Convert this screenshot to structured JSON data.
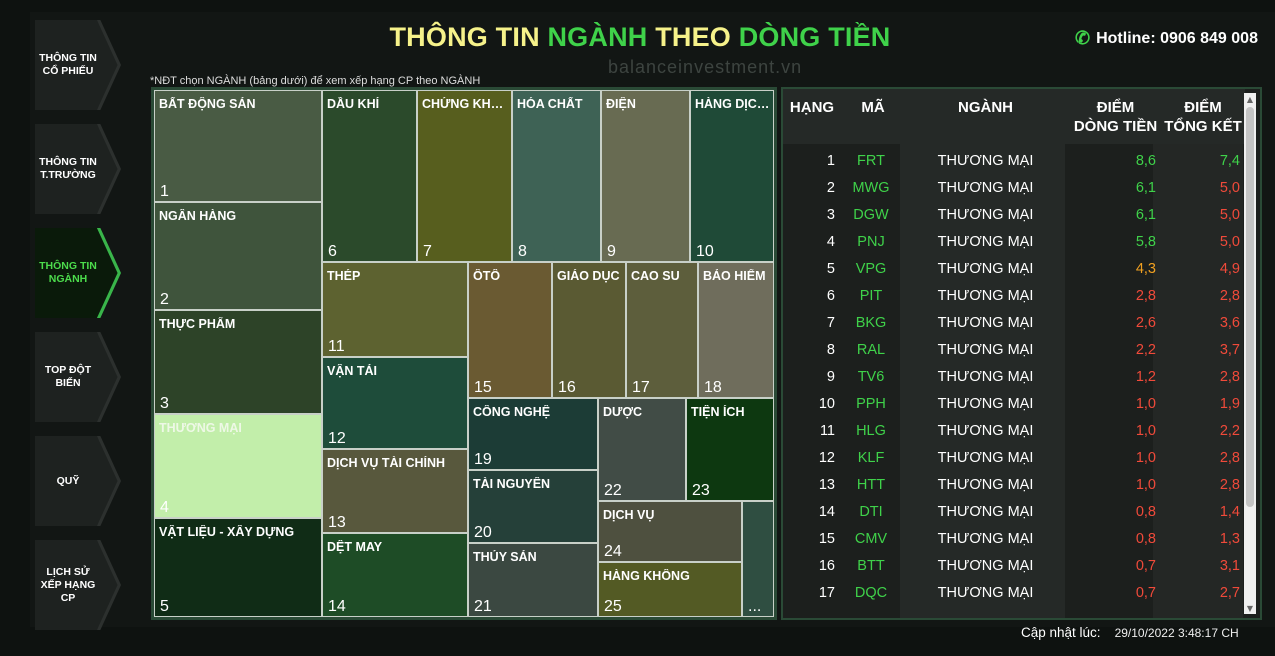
{
  "header": {
    "title_parts": [
      {
        "text": "THÔNG TIN ",
        "color": "#f6f28a"
      },
      {
        "text": "NGÀNH ",
        "color": "#3fd24a"
      },
      {
        "text": "THEO ",
        "color": "#f6f28a"
      },
      {
        "text": "DÒNG TIỀN",
        "color": "#3fd24a"
      }
    ],
    "hotline": "Hotline: 0906 849 008",
    "watermark": "balanceinvestment.vn",
    "note": "*NĐT chọn NGÀNH (bảng dưới) để xem xếp hạng CP theo NGÀNH"
  },
  "sidebar": {
    "items": [
      {
        "label": "THÔNG TIN CỔ PHIẾU",
        "active": false
      },
      {
        "label": "THÔNG TIN T.TRƯỜNG",
        "active": false
      },
      {
        "label": "THÔNG TIN NGÀNH",
        "active": true
      },
      {
        "label": "TOP ĐỘT BIẾN",
        "active": false
      },
      {
        "label": "QUỸ",
        "active": false
      },
      {
        "label": "LỊCH SỬ XẾP HẠNG CP",
        "active": false
      }
    ]
  },
  "treemap": {
    "cells": [
      {
        "name": "BẤT ĐỘNG SẢN",
        "rank": "1",
        "color": "#495b44"
      },
      {
        "name": "NGÂN HÀNG",
        "rank": "2",
        "color": "#3f543c"
      },
      {
        "name": "THỰC PHẨM",
        "rank": "3",
        "color": "#2d4328"
      },
      {
        "name": "THƯƠNG MẠI",
        "rank": "4",
        "color": "#c2eeaa"
      },
      {
        "name": "VẬT LIỆU - XÂY DỰNG",
        "rank": "5",
        "color": "#102c16"
      },
      {
        "name": "DẦU KHÍ",
        "rank": "6",
        "color": "#2b4a2b"
      },
      {
        "name": "CHỨNG KHOÁN",
        "rank": "7",
        "color": "#575e1e"
      },
      {
        "name": "HÓA CHẤT",
        "rank": "8",
        "color": "#3e6255"
      },
      {
        "name": "ĐIỆN",
        "rank": "9",
        "color": "#686b52"
      },
      {
        "name": "HÀNG DỊCH VỤ",
        "rank": "10",
        "color": "#1f4a37"
      },
      {
        "name": "THÉP",
        "rank": "11",
        "color": "#5d6230"
      },
      {
        "name": "ÔTÔ",
        "rank": "15",
        "color": "#6a5a32"
      },
      {
        "name": "GIÁO DỤC",
        "rank": "16",
        "color": "#5a5a33"
      },
      {
        "name": "CAO SU",
        "rank": "17",
        "color": "#5d5e3c"
      },
      {
        "name": "BẢO HIỂM",
        "rank": "18",
        "color": "#6f6d5c"
      },
      {
        "name": "VẬN TẢI",
        "rank": "12",
        "color": "#1e4c3a"
      },
      {
        "name": "DỊCH VỤ TÀI CHÍNH",
        "rank": "13",
        "color": "#58583d"
      },
      {
        "name": "DỆT MAY",
        "rank": "14",
        "color": "#1e4c26"
      },
      {
        "name": "CÔNG NGHỆ",
        "rank": "19",
        "color": "#1c3c36"
      },
      {
        "name": "TÀI NGUYÊN",
        "rank": "20",
        "color": "#254039"
      },
      {
        "name": "THỦY SẢN",
        "rank": "21",
        "color": "#3b4841"
      },
      {
        "name": "DƯỢC",
        "rank": "22",
        "color": "#414c46"
      },
      {
        "name": "TIỆN ÍCH",
        "rank": "23",
        "color": "#0d3810"
      },
      {
        "name": "DỊCH VỤ",
        "rank": "24",
        "color": "#4e503f"
      },
      {
        "name": "HÀNG KHÔNG",
        "rank": "25",
        "color": "#535a24"
      },
      {
        "name": "",
        "rank": "...",
        "color": "#2f4e41"
      }
    ]
  },
  "table": {
    "headers": {
      "rank": "HẠNG",
      "code": "MÃ",
      "industry": "NGÀNH",
      "flow_1": "ĐIỂM",
      "flow_2": "DÒNG TIỀN",
      "total_1": "ĐIỂM",
      "total_2": "TỔNG KẾT"
    },
    "rows": [
      {
        "rank": "1",
        "code": "FRT",
        "industry": "THƯƠNG MẠI",
        "flow": "8,6",
        "total": "7,4",
        "flow_color": "#3fd24a",
        "total_color": "#3fd24a"
      },
      {
        "rank": "2",
        "code": "MWG",
        "industry": "THƯƠNG MẠI",
        "flow": "6,1",
        "total": "5,0",
        "flow_color": "#3fd24a",
        "total_color": "#f04a3a"
      },
      {
        "rank": "3",
        "code": "DGW",
        "industry": "THƯƠNG MẠI",
        "flow": "6,1",
        "total": "5,0",
        "flow_color": "#3fd24a",
        "total_color": "#f04a3a"
      },
      {
        "rank": "4",
        "code": "PNJ",
        "industry": "THƯƠNG MẠI",
        "flow": "5,8",
        "total": "5,0",
        "flow_color": "#3fd24a",
        "total_color": "#f04a3a"
      },
      {
        "rank": "5",
        "code": "VPG",
        "industry": "THƯƠNG MẠI",
        "flow": "4,3",
        "total": "4,9",
        "flow_color": "#f0a020",
        "total_color": "#f04a3a"
      },
      {
        "rank": "6",
        "code": "PIT",
        "industry": "THƯƠNG MẠI",
        "flow": "2,8",
        "total": "2,8",
        "flow_color": "#f04a3a",
        "total_color": "#f04a3a"
      },
      {
        "rank": "7",
        "code": "BKG",
        "industry": "THƯƠNG MẠI",
        "flow": "2,6",
        "total": "3,6",
        "flow_color": "#f04a3a",
        "total_color": "#f04a3a"
      },
      {
        "rank": "8",
        "code": "RAL",
        "industry": "THƯƠNG MẠI",
        "flow": "2,2",
        "total": "3,7",
        "flow_color": "#f04a3a",
        "total_color": "#f04a3a"
      },
      {
        "rank": "9",
        "code": "TV6",
        "industry": "THƯƠNG MẠI",
        "flow": "1,2",
        "total": "2,8",
        "flow_color": "#f04a3a",
        "total_color": "#f04a3a"
      },
      {
        "rank": "10",
        "code": "PPH",
        "industry": "THƯƠNG MẠI",
        "flow": "1,0",
        "total": "1,9",
        "flow_color": "#f04a3a",
        "total_color": "#f04a3a"
      },
      {
        "rank": "11",
        "code": "HLG",
        "industry": "THƯƠNG MẠI",
        "flow": "1,0",
        "total": "2,2",
        "flow_color": "#f04a3a",
        "total_color": "#f04a3a"
      },
      {
        "rank": "12",
        "code": "KLF",
        "industry": "THƯƠNG MẠI",
        "flow": "1,0",
        "total": "2,8",
        "flow_color": "#f04a3a",
        "total_color": "#f04a3a"
      },
      {
        "rank": "13",
        "code": "HTT",
        "industry": "THƯƠNG MẠI",
        "flow": "1,0",
        "total": "2,8",
        "flow_color": "#f04a3a",
        "total_color": "#f04a3a"
      },
      {
        "rank": "14",
        "code": "DTI",
        "industry": "THƯƠNG MẠI",
        "flow": "0,8",
        "total": "1,4",
        "flow_color": "#f04a3a",
        "total_color": "#f04a3a"
      },
      {
        "rank": "15",
        "code": "CMV",
        "industry": "THƯƠNG MẠI",
        "flow": "0,8",
        "total": "1,3",
        "flow_color": "#f04a3a",
        "total_color": "#f04a3a"
      },
      {
        "rank": "16",
        "code": "BTT",
        "industry": "THƯƠNG MẠI",
        "flow": "0,7",
        "total": "3,1",
        "flow_color": "#f04a3a",
        "total_color": "#f04a3a"
      },
      {
        "rank": "17",
        "code": "DQC",
        "industry": "THƯƠNG MẠI",
        "flow": "0,7",
        "total": "2,7",
        "flow_color": "#f04a3a",
        "total_color": "#f04a3a"
      }
    ]
  },
  "footer": {
    "updated_label": "Cập nhật lúc:",
    "updated_time": "29/10/2022 3:48:17 CH"
  }
}
